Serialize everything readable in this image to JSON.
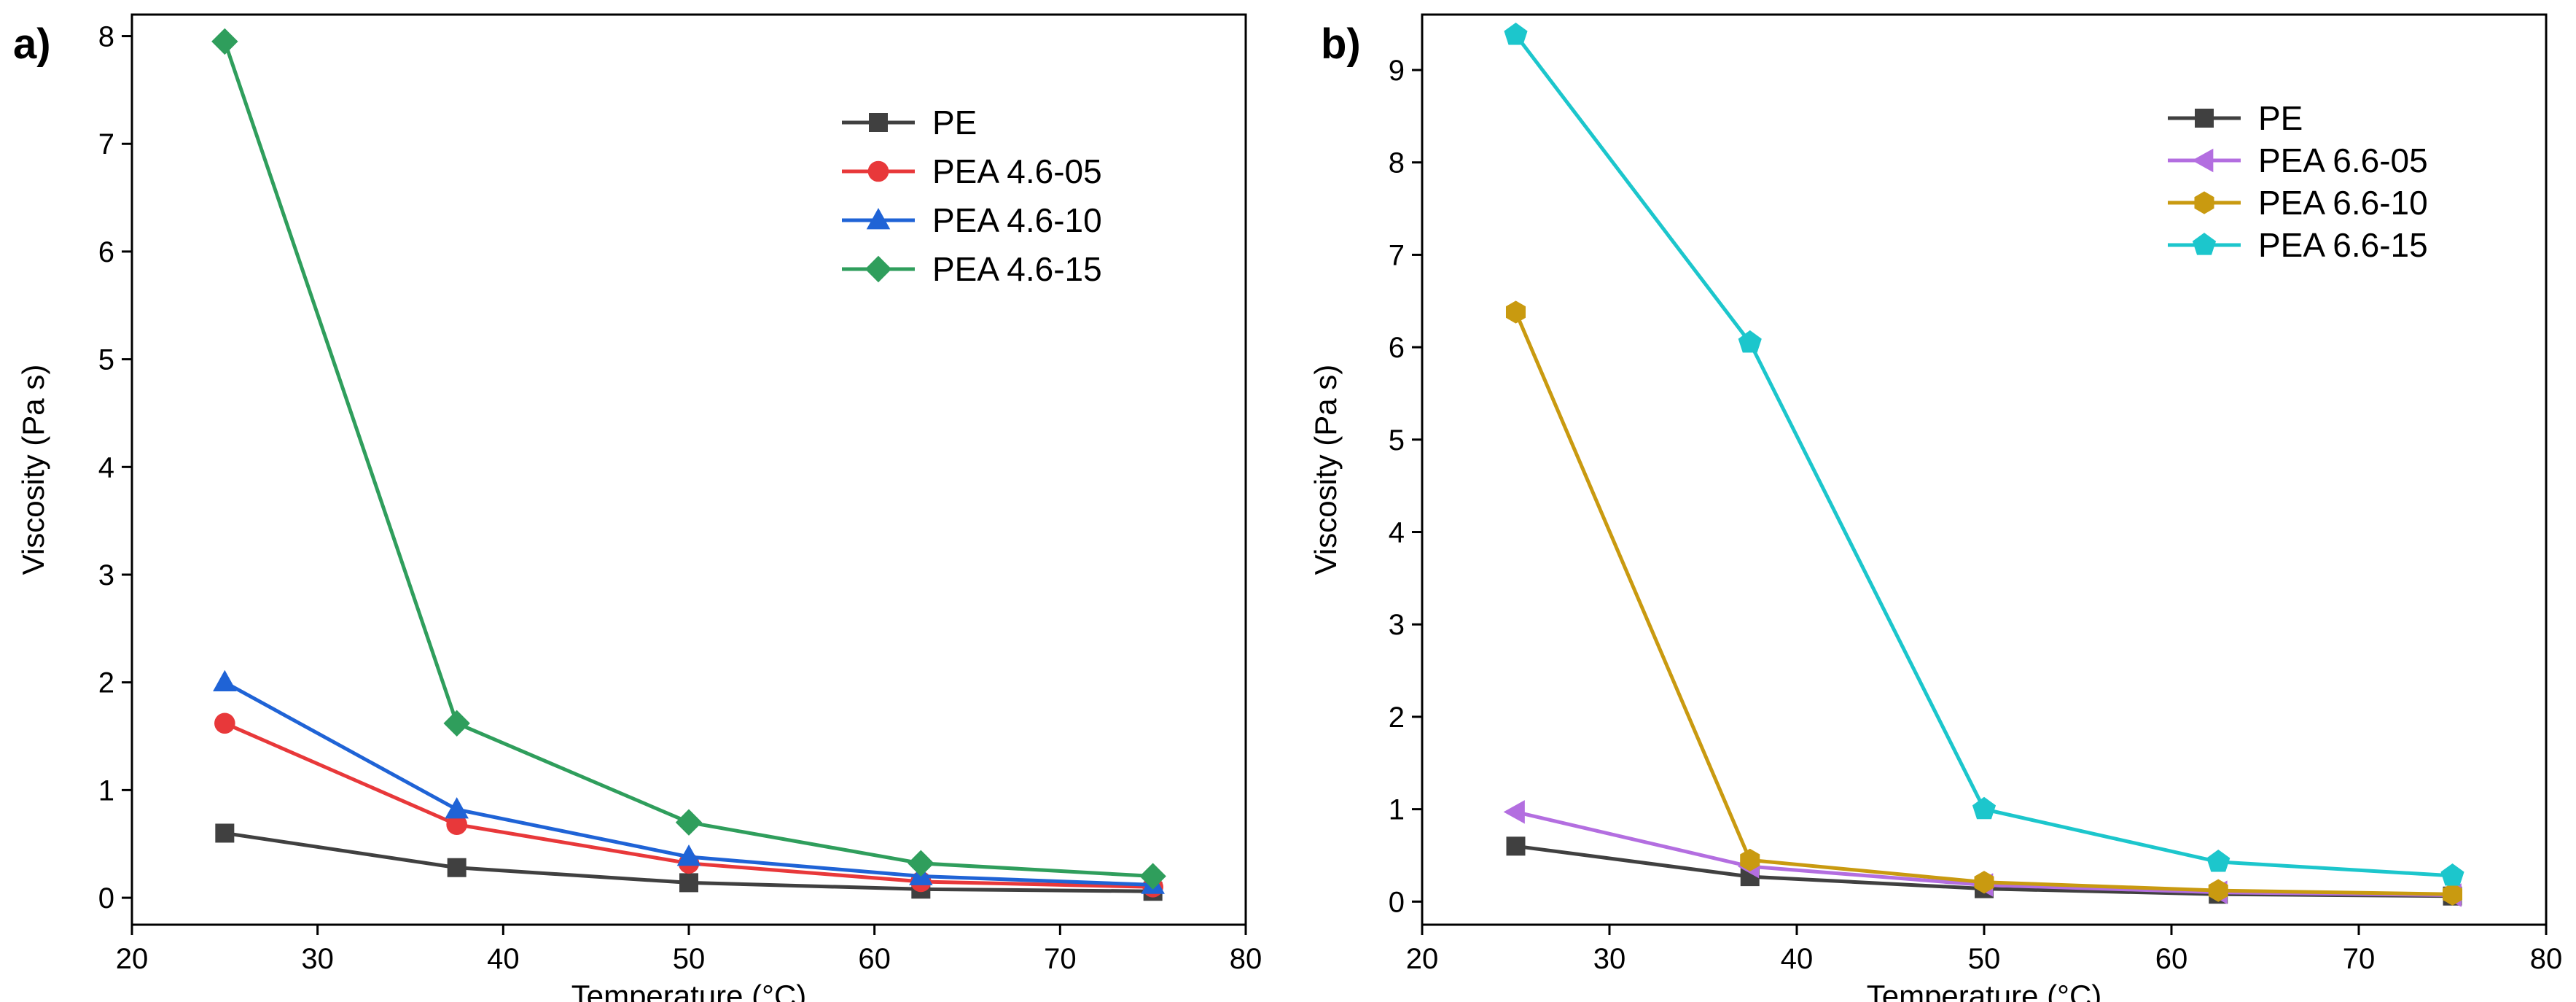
{
  "chart_data": [
    {
      "type": "line",
      "panel_label": "a)",
      "title": "",
      "xlabel": "Temperature (°C)",
      "ylabel": "Viscosity (Pa s)",
      "xlim": [
        20,
        80
      ],
      "ylim": [
        -0.25,
        8.2
      ],
      "xticks": [
        20,
        30,
        40,
        50,
        60,
        70,
        80
      ],
      "yticks": [
        0,
        1,
        2,
        3,
        4,
        5,
        6,
        7,
        8
      ],
      "legend_position": "top-right",
      "x": [
        25,
        37.5,
        50,
        62.5,
        75
      ],
      "series": [
        {
          "name": "PE",
          "color": "#404040",
          "marker": "square",
          "values": [
            0.6,
            0.28,
            0.14,
            0.08,
            0.06
          ]
        },
        {
          "name": "PEA 4.6-05",
          "color": "#e8383a",
          "marker": "circle",
          "values": [
            1.62,
            0.68,
            0.32,
            0.15,
            0.1
          ]
        },
        {
          "name": "PEA 4.6-10",
          "color": "#1f63d6",
          "marker": "triangle-up",
          "values": [
            2.0,
            0.82,
            0.38,
            0.2,
            0.12
          ]
        },
        {
          "name": "PEA 4.6-15",
          "color": "#2f9e5c",
          "marker": "diamond",
          "values": [
            7.95,
            1.62,
            0.7,
            0.32,
            0.2
          ]
        }
      ]
    },
    {
      "type": "line",
      "panel_label": "b)",
      "title": "",
      "xlabel": "Temperature (°C)",
      "ylabel": "Viscosity (Pa s)",
      "xlim": [
        20,
        80
      ],
      "ylim": [
        -0.25,
        9.6
      ],
      "xticks": [
        20,
        30,
        40,
        50,
        60,
        70,
        80
      ],
      "yticks": [
        0,
        1,
        2,
        3,
        4,
        5,
        6,
        7,
        8,
        9
      ],
      "legend_position": "top-right",
      "x": [
        25,
        37.5,
        50,
        62.5,
        75
      ],
      "series": [
        {
          "name": "PE",
          "color": "#404040",
          "marker": "square",
          "values": [
            0.6,
            0.27,
            0.14,
            0.08,
            0.06
          ]
        },
        {
          "name": "PEA 6.6-05",
          "color": "#b36ee0",
          "marker": "triangle-left",
          "values": [
            0.97,
            0.38,
            0.18,
            0.1,
            0.07
          ]
        },
        {
          "name": "PEA 6.6-10",
          "color": "#c99a10",
          "marker": "hexagon",
          "values": [
            6.38,
            0.45,
            0.21,
            0.12,
            0.08
          ]
        },
        {
          "name": "PEA 6.6-15",
          "color": "#1cc6cc",
          "marker": "pentagon",
          "values": [
            9.38,
            6.05,
            1.0,
            0.43,
            0.28
          ]
        }
      ]
    }
  ]
}
